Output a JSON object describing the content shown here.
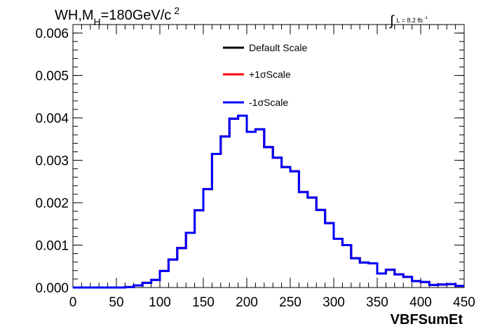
{
  "chart_data": {
    "type": "line",
    "title": {
      "main": "WH,M",
      "sub": "H",
      "rest": "=180GeV/c",
      "sup": "2"
    },
    "lumi": {
      "symbol": "∫",
      "text": "L = 8.2 fb",
      "sup": "-1"
    },
    "xlabel": "VBFSumEt",
    "ylabel": "",
    "xlim": [
      0,
      450
    ],
    "ylim": [
      0,
      0.0062
    ],
    "xticks": [
      0,
      50,
      100,
      150,
      200,
      250,
      300,
      350,
      400,
      450
    ],
    "xtick_labels": [
      "0",
      "50",
      "100",
      "150",
      "200",
      "250",
      "300",
      "350",
      "400",
      "450"
    ],
    "yticks": [
      0,
      0.001,
      0.002,
      0.003,
      0.004,
      0.005,
      0.006
    ],
    "ytick_labels": [
      "0.000",
      "0.001",
      "0.002",
      "0.003",
      "0.004",
      "0.005",
      "0.006"
    ],
    "grid": false,
    "legend_position": "top-center",
    "bin_edges": [
      0,
      10,
      20,
      30,
      40,
      50,
      60,
      70,
      80,
      90,
      100,
      110,
      120,
      130,
      140,
      150,
      160,
      170,
      180,
      190,
      200,
      210,
      220,
      230,
      240,
      250,
      260,
      270,
      280,
      290,
      300,
      310,
      320,
      330,
      340,
      350,
      360,
      370,
      380,
      390,
      400,
      410,
      420,
      430,
      440,
      450
    ],
    "series": [
      {
        "name": "Default Scale",
        "color": "#000000",
        "values": [
          0.0,
          0.0,
          0.0,
          0.0,
          0.0,
          0.0,
          1e-05,
          5e-05,
          0.00011,
          0.00018,
          0.00039,
          0.00066,
          0.00093,
          0.00129,
          0.00182,
          0.00232,
          0.00315,
          0.00356,
          0.00398,
          0.00405,
          0.00367,
          0.00373,
          0.00331,
          0.00306,
          0.00284,
          0.00274,
          0.00225,
          0.00212,
          0.00183,
          0.00152,
          0.00115,
          0.001,
          0.00069,
          0.00059,
          0.00057,
          0.00033,
          0.00042,
          0.00031,
          0.00025,
          0.00015,
          0.00013,
          6e-05,
          7e-05,
          8e-05,
          4e-05
        ]
      },
      {
        "name": "+1σScale",
        "color": "#ff0000",
        "values": [
          0.0,
          0.0,
          0.0,
          0.0,
          0.0,
          0.0,
          1e-05,
          5e-05,
          0.00011,
          0.00018,
          0.00039,
          0.00066,
          0.00093,
          0.00129,
          0.00182,
          0.00232,
          0.00315,
          0.00356,
          0.00398,
          0.00405,
          0.00367,
          0.00373,
          0.00331,
          0.00306,
          0.00284,
          0.00274,
          0.00225,
          0.00212,
          0.00183,
          0.00152,
          0.00115,
          0.001,
          0.00069,
          0.00059,
          0.00057,
          0.00033,
          0.00042,
          0.00031,
          0.00025,
          0.00015,
          0.00013,
          6e-05,
          7e-05,
          8e-05,
          4e-05
        ]
      },
      {
        "name": "-1σScale",
        "color": "#0000ff",
        "values": [
          0.0,
          0.0,
          0.0,
          0.0,
          0.0,
          0.0,
          1e-05,
          5e-05,
          0.00011,
          0.00018,
          0.00039,
          0.00066,
          0.00093,
          0.00129,
          0.00182,
          0.00232,
          0.00315,
          0.00356,
          0.00398,
          0.00405,
          0.00367,
          0.00373,
          0.00331,
          0.00306,
          0.00284,
          0.00274,
          0.00225,
          0.00212,
          0.00183,
          0.00152,
          0.00115,
          0.001,
          0.00069,
          0.00059,
          0.00057,
          0.00033,
          0.00042,
          0.00031,
          0.00025,
          0.00015,
          0.00013,
          6e-05,
          7e-05,
          8e-05,
          4e-05
        ]
      }
    ]
  }
}
